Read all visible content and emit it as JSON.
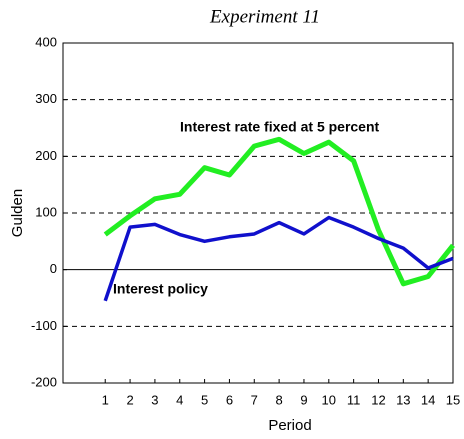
{
  "chart_data": {
    "type": "line",
    "title": "Experiment 11",
    "x_label": "Period",
    "y_label": "Gulden",
    "x": [
      1,
      2,
      3,
      4,
      5,
      6,
      7,
      8,
      9,
      10,
      11,
      12,
      13,
      14,
      15
    ],
    "series": [
      {
        "name": "Interest rate fixed at 5 percent",
        "color": "#22ee22",
        "values": [
          62,
          95,
          125,
          133,
          180,
          167,
          218,
          230,
          205,
          225,
          192,
          70,
          -25,
          -12,
          43
        ]
      },
      {
        "name": "Interest policy",
        "color": "#1010cc",
        "values": [
          -55,
          75,
          80,
          62,
          50,
          58,
          63,
          83,
          63,
          92,
          75,
          55,
          38,
          3,
          20
        ]
      }
    ],
    "xlim": [
      -0.7,
      15
    ],
    "xticks": [
      1,
      2,
      3,
      4,
      5,
      6,
      7,
      8,
      9,
      10,
      11,
      12,
      13,
      14,
      15
    ],
    "ylim": [
      -200,
      400
    ],
    "yticks": [
      -200,
      -100,
      0,
      100,
      200,
      300,
      400
    ],
    "grid": true
  }
}
